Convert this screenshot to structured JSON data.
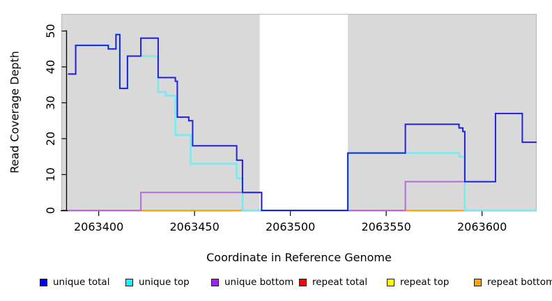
{
  "chart_data": {
    "type": "line",
    "step": true,
    "title": "",
    "xlabel": "Coordinate in Reference Genome",
    "ylabel": "Read Coverage Depth",
    "xlim": [
      2063380.5,
      2063628.5
    ],
    "ylim": [
      0,
      54.8
    ],
    "x_ticks": [
      "2063400",
      "2063450",
      "2063500",
      "2063550",
      "2063600"
    ],
    "x_tick_values": [
      2063400,
      2063450,
      2063500,
      2063550,
      2063600
    ],
    "y_ticks": [
      "0",
      "10",
      "20",
      "30",
      "40",
      "50"
    ],
    "y_tick_values": [
      0,
      10,
      20,
      30,
      40,
      50
    ],
    "grid": false,
    "plot_bg": "#d9d9d9",
    "plot_border": "#bcbcbc",
    "axis_color": "#000000",
    "gap_region": {
      "start": 2063484,
      "end": 2063530,
      "color": "#ffffff"
    },
    "series": [
      {
        "name": "repeat total",
        "color": "#ff0000",
        "line_color": "#e8365e",
        "width": 2,
        "points": [
          [
            2063384,
            0
          ]
        ]
      },
      {
        "name": "repeat top",
        "color": "#ffff00",
        "line_color": "#ffff00",
        "width": 2,
        "points": [
          [
            2063384,
            0
          ]
        ]
      },
      {
        "name": "repeat bottom",
        "color": "#ffa500",
        "line_color": "#ffa500",
        "width": 2,
        "points": [
          [
            2063384,
            0
          ]
        ]
      },
      {
        "name": "unique bottom",
        "color": "#a020f0",
        "line_color": "#b36bd9",
        "width": 2,
        "points": [
          [
            2063384,
            0
          ],
          [
            2063422,
            5
          ],
          [
            2063485,
            0
          ],
          [
            2063560,
            8
          ],
          [
            2063591,
            0
          ]
        ]
      },
      {
        "name": "unique top",
        "color": "#00ffff",
        "line_color": "#7ce8ee",
        "width": 2.6,
        "points": [
          [
            2063384,
            38
          ],
          [
            2063388,
            46
          ],
          [
            2063405,
            45
          ],
          [
            2063409,
            49
          ],
          [
            2063411,
            34
          ],
          [
            2063415,
            43
          ],
          [
            2063431,
            33
          ],
          [
            2063435,
            32
          ],
          [
            2063440,
            21
          ],
          [
            2063448,
            13
          ],
          [
            2063472,
            9
          ],
          [
            2063475,
            0
          ],
          [
            2063530,
            16
          ],
          [
            2063588,
            15
          ],
          [
            2063591,
            0
          ]
        ]
      },
      {
        "name": "unique total",
        "color": "#0000ff",
        "line_color": "#2020dd",
        "width": 2,
        "points": [
          [
            2063384,
            38
          ],
          [
            2063388,
            46
          ],
          [
            2063405,
            45
          ],
          [
            2063409,
            49
          ],
          [
            2063411,
            34
          ],
          [
            2063415,
            43
          ],
          [
            2063422,
            48
          ],
          [
            2063431,
            37
          ],
          [
            2063440,
            36
          ],
          [
            2063441,
            26
          ],
          [
            2063447,
            25
          ],
          [
            2063449,
            18
          ],
          [
            2063472,
            14
          ],
          [
            2063475,
            5
          ],
          [
            2063485,
            0
          ],
          [
            2063530,
            16
          ],
          [
            2063560,
            24
          ],
          [
            2063588,
            23
          ],
          [
            2063590,
            22
          ],
          [
            2063591,
            8
          ],
          [
            2063607,
            27
          ],
          [
            2063621,
            19
          ]
        ]
      }
    ],
    "legend": [
      {
        "label": "unique total",
        "color": "#0000ff"
      },
      {
        "label": "unique top",
        "color": "#00ffff"
      },
      {
        "label": "unique bottom",
        "color": "#a020f0"
      },
      {
        "label": "repeat total",
        "color": "#ff0000"
      },
      {
        "label": "repeat top",
        "color": "#ffff00"
      },
      {
        "label": "repeat bottom",
        "color": "#ffa500"
      }
    ],
    "legend_position": "bottom"
  }
}
